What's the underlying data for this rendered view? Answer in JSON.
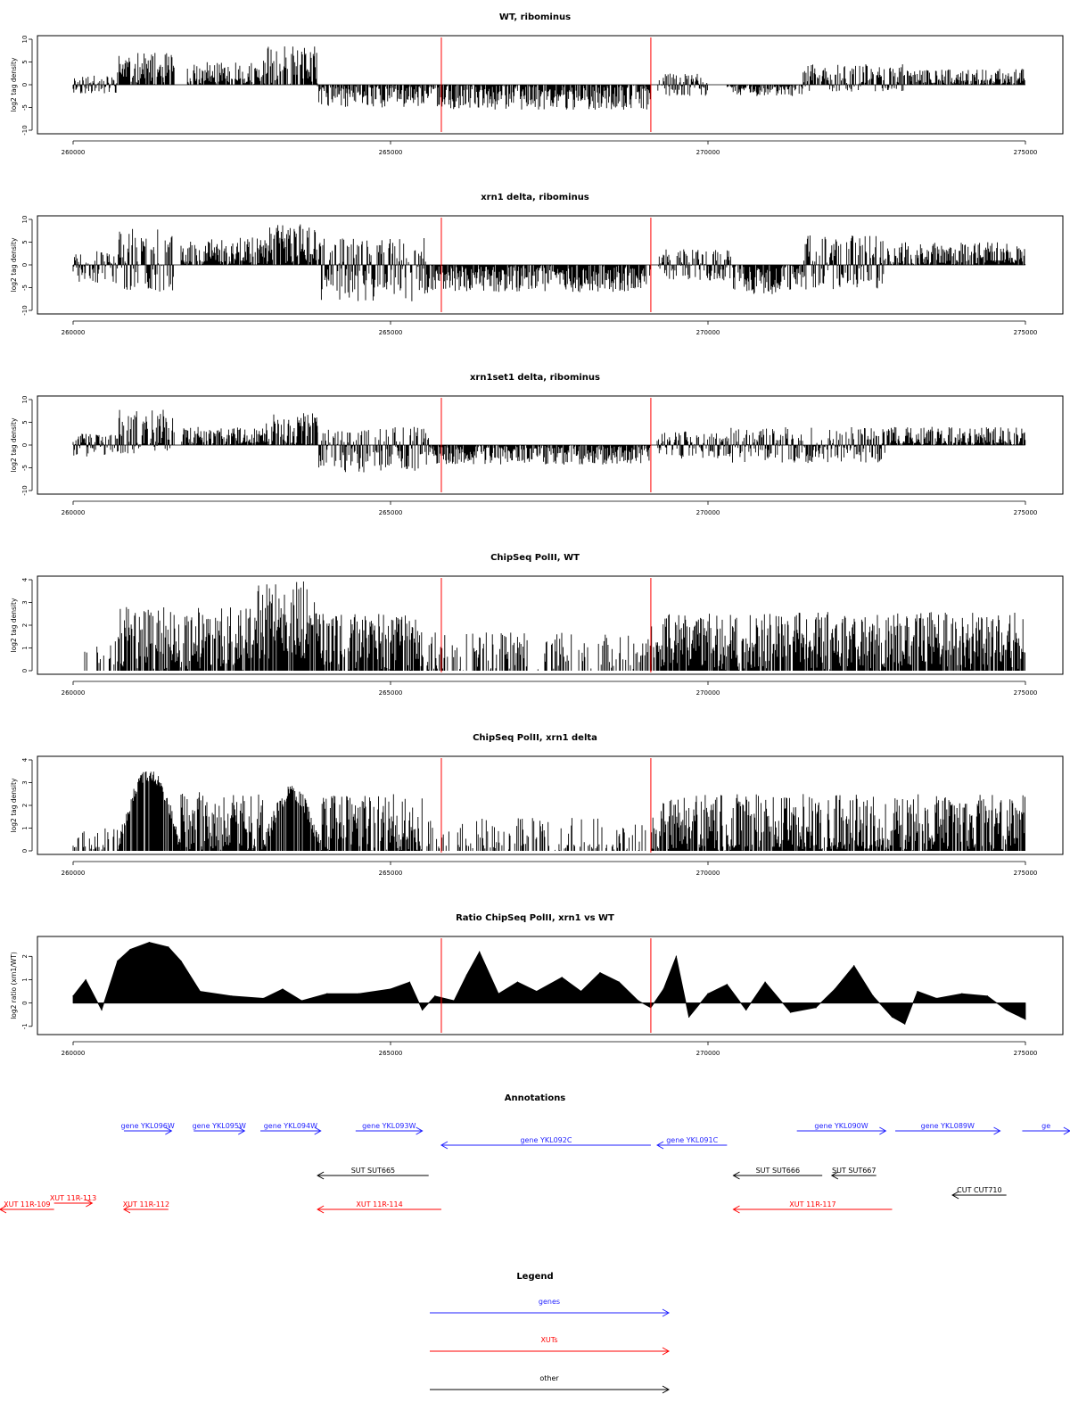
{
  "figure": {
    "colors": {
      "bar": "#000000",
      "region": "#ff0000",
      "genes": "#1f1fff",
      "xuts": "#ff0000",
      "other": "#000000"
    }
  },
  "chart_data": [
    {
      "type": "bar",
      "title": "WT, ribominus",
      "ylabel": "log2 tag density",
      "xlim": [
        260000,
        275000
      ],
      "xticks": [
        260000,
        265000,
        270000,
        275000
      ],
      "ylim": [
        -10,
        10
      ],
      "yticks": [
        -10,
        -5,
        0,
        5,
        10
      ],
      "seed": 11,
      "profile": [
        {
          "x": [
            260000,
            260700
          ],
          "mean": 0,
          "amp": 2,
          "sign": "mixed"
        },
        {
          "x": [
            260700,
            261600
          ],
          "mean": 3.5,
          "amp": 3.5,
          "sign": "pos"
        },
        {
          "x": [
            261800,
            263000
          ],
          "mean": 2,
          "amp": 3,
          "sign": "pos"
        },
        {
          "x": [
            263000,
            263850
          ],
          "mean": 4,
          "amp": 4.5,
          "sign": "pos"
        },
        {
          "x": [
            263850,
            265800
          ],
          "mean": -2,
          "amp": 3,
          "sign": "neg"
        },
        {
          "x": [
            265800,
            269100
          ],
          "mean": -2.5,
          "amp": 3,
          "sign": "neg"
        },
        {
          "x": [
            269200,
            270000
          ],
          "mean": 0,
          "amp": 2.5,
          "sign": "mixed"
        },
        {
          "x": [
            270300,
            271500
          ],
          "mean": -1,
          "amp": 1.5,
          "sign": "neg"
        },
        {
          "x": [
            271500,
            273200
          ],
          "mean": 1.5,
          "amp": 3,
          "sign": "mixed"
        },
        {
          "x": [
            273200,
            275000
          ],
          "mean": 1,
          "amp": 2.5,
          "sign": "pos"
        }
      ],
      "red_lines": [
        265800,
        269100
      ]
    },
    {
      "type": "bar",
      "title": "xrn1 delta, ribominus",
      "ylabel": "log2 tag density",
      "xlim": [
        260000,
        275000
      ],
      "xticks": [
        260000,
        265000,
        270000,
        275000
      ],
      "ylim": [
        -10,
        10
      ],
      "yticks": [
        -10,
        -5,
        0,
        5,
        10
      ],
      "seed": 23,
      "profile": [
        {
          "x": [
            260000,
            260700
          ],
          "mean": -0.5,
          "amp": 3.5,
          "sign": "mixed"
        },
        {
          "x": [
            260700,
            261580
          ],
          "mean": 1,
          "amp": 7,
          "sign": "mixed"
        },
        {
          "x": [
            261700,
            263000
          ],
          "mean": 2.5,
          "amp": 3.5,
          "sign": "pos"
        },
        {
          "x": [
            263000,
            263900
          ],
          "mean": 4,
          "amp": 5,
          "sign": "pos"
        },
        {
          "x": [
            263900,
            265600
          ],
          "mean": -1,
          "amp": 7,
          "sign": "mixed"
        },
        {
          "x": [
            265600,
            269100
          ],
          "mean": -3,
          "amp": 3,
          "sign": "neg"
        },
        {
          "x": [
            269200,
            270400
          ],
          "mean": 0,
          "amp": 3.5,
          "sign": "mixed"
        },
        {
          "x": [
            270400,
            271500
          ],
          "mean": -3,
          "amp": 3.5,
          "sign": "neg"
        },
        {
          "x": [
            271500,
            272800
          ],
          "mean": 0.5,
          "amp": 6,
          "sign": "mixed"
        },
        {
          "x": [
            272800,
            275000
          ],
          "mean": 2,
          "amp": 3,
          "sign": "pos"
        }
      ],
      "red_lines": [
        265800,
        269100
      ]
    },
    {
      "type": "bar",
      "title": "xrn1set1 delta, ribominus",
      "ylabel": "log2 tag density",
      "xlim": [
        260000,
        275000
      ],
      "xticks": [
        260000,
        265000,
        270000,
        275000
      ],
      "ylim": [
        -10,
        10
      ],
      "yticks": [
        -10,
        -5,
        0,
        5,
        10
      ],
      "seed": 37,
      "profile": [
        {
          "x": [
            260000,
            260700
          ],
          "mean": 0,
          "amp": 2.5,
          "sign": "mixed"
        },
        {
          "x": [
            260700,
            261600
          ],
          "mean": 3,
          "amp": 5,
          "sign": "mixed"
        },
        {
          "x": [
            261700,
            263000
          ],
          "mean": 1.5,
          "amp": 2.5,
          "sign": "pos"
        },
        {
          "x": [
            263000,
            263850
          ],
          "mean": 3,
          "amp": 4,
          "sign": "pos"
        },
        {
          "x": [
            263850,
            265600
          ],
          "mean": -1,
          "amp": 5,
          "sign": "mixed"
        },
        {
          "x": [
            265600,
            269100
          ],
          "mean": -1.8,
          "amp": 2.5,
          "sign": "neg"
        },
        {
          "x": [
            269200,
            270300
          ],
          "mean": 0,
          "amp": 3,
          "sign": "mixed"
        },
        {
          "x": [
            270300,
            272800
          ],
          "mean": 0,
          "amp": 4,
          "sign": "mixed"
        },
        {
          "x": [
            272800,
            275000
          ],
          "mean": 1.5,
          "amp": 2.5,
          "sign": "pos"
        }
      ],
      "red_lines": [
        265800,
        269100
      ]
    },
    {
      "type": "bar",
      "title": "ChipSeq PolII, WT",
      "ylabel": "log2 tag density",
      "xlim": [
        260000,
        275000
      ],
      "xticks": [
        260000,
        265000,
        270000,
        275000
      ],
      "ylim": [
        0,
        4
      ],
      "yticks": [
        0,
        1,
        2,
        3,
        4
      ],
      "seed": 51,
      "profile": [
        {
          "x": [
            260000,
            260700
          ],
          "mean": 0.7,
          "amp": 0.6,
          "sign": "pos",
          "density": 0.25
        },
        {
          "x": [
            260700,
            262900
          ],
          "mean": 1.4,
          "amp": 1.4,
          "sign": "pos"
        },
        {
          "x": [
            262900,
            263850
          ],
          "mean": 2.2,
          "amp": 1.8,
          "sign": "pos"
        },
        {
          "x": [
            263850,
            265500
          ],
          "mean": 1.2,
          "amp": 1.3,
          "sign": "pos"
        },
        {
          "x": [
            265500,
            269100
          ],
          "mean": 0.8,
          "amp": 0.9,
          "sign": "pos",
          "density": 0.35
        },
        {
          "x": [
            269100,
            275000
          ],
          "mean": 1.3,
          "amp": 1.3,
          "sign": "pos"
        }
      ],
      "red_lines": [
        265800,
        269100
      ]
    },
    {
      "type": "bar",
      "title": "ChipSeq PolII, xrn1 delta",
      "ylabel": "log2 tag density",
      "xlim": [
        260000,
        275000
      ],
      "xticks": [
        260000,
        265000,
        270000,
        275000
      ],
      "ylim": [
        0,
        4
      ],
      "yticks": [
        0,
        1,
        2,
        3,
        4
      ],
      "seed": 67,
      "profile": [
        {
          "x": [
            260000,
            260700
          ],
          "mean": 0.4,
          "amp": 0.6,
          "sign": "pos",
          "density": 0.3
        },
        {
          "x": [
            260700,
            261700
          ],
          "mean": 3.2,
          "amp": 1.0,
          "sign": "pos",
          "hump": true
        },
        {
          "x": [
            261700,
            263000
          ],
          "mean": 1.3,
          "amp": 1.3,
          "sign": "pos"
        },
        {
          "x": [
            263000,
            263900
          ],
          "mean": 2.4,
          "amp": 1.2,
          "sign": "pos",
          "hump": true
        },
        {
          "x": [
            263900,
            265500
          ],
          "mean": 1.2,
          "amp": 1.3,
          "sign": "pos"
        },
        {
          "x": [
            265500,
            269100
          ],
          "mean": 0.6,
          "amp": 0.9,
          "sign": "pos",
          "density": 0.3
        },
        {
          "x": [
            269100,
            275000
          ],
          "mean": 1.1,
          "amp": 1.4,
          "sign": "pos"
        }
      ],
      "red_lines": [
        265800,
        269100
      ]
    },
    {
      "type": "area",
      "title": "Ratio ChipSeq PolII, xrn1 vs WT",
      "ylabel": "log2 ratio (xrn1/WT)",
      "xlim": [
        260000,
        275000
      ],
      "xticks": [
        260000,
        265000,
        270000,
        275000
      ],
      "ylim": [
        -1.2,
        2.7
      ],
      "yticks": [
        -1,
        0,
        1,
        2
      ],
      "x": [
        260000,
        260200,
        260450,
        260700,
        260900,
        261200,
        261500,
        261700,
        262000,
        262500,
        263000,
        263300,
        263600,
        264000,
        264500,
        265000,
        265300,
        265500,
        265700,
        266000,
        266200,
        266400,
        266700,
        267000,
        267300,
        267700,
        268000,
        268300,
        268600,
        268900,
        269100,
        269300,
        269500,
        269700,
        270000,
        270300,
        270600,
        270900,
        271300,
        271700,
        272000,
        272300,
        272600,
        272900,
        273100,
        273300,
        273600,
        274000,
        274400,
        274700,
        275000
      ],
      "values": [
        0.3,
        1.0,
        -0.3,
        1.8,
        2.3,
        2.6,
        2.4,
        1.8,
        0.5,
        0.3,
        0.2,
        0.6,
        0.1,
        0.4,
        0.4,
        0.6,
        0.9,
        -0.3,
        0.3,
        0.1,
        1.2,
        2.2,
        0.4,
        0.9,
        0.5,
        1.1,
        0.5,
        1.3,
        0.9,
        0.1,
        -0.2,
        0.6,
        2.0,
        -0.6,
        0.4,
        0.8,
        -0.3,
        0.9,
        -0.4,
        -0.2,
        0.6,
        1.6,
        0.3,
        -0.6,
        -0.9,
        0.5,
        0.2,
        0.4,
        0.3,
        -0.3,
        -0.7
      ],
      "red_lines": [
        265800,
        269100
      ]
    }
  ],
  "annotations": {
    "title": "Annotations",
    "xlim": [
      260000,
      275000
    ],
    "features": [
      {
        "label": "gene YKL096W",
        "x1": 260800,
        "x2": 261550,
        "strand": "+",
        "row": 0,
        "type": "genes"
      },
      {
        "label": "gene YKL095W",
        "x1": 261900,
        "x2": 262700,
        "strand": "+",
        "row": 0,
        "type": "genes"
      },
      {
        "label": "gene YKL094W",
        "x1": 262950,
        "x2": 263900,
        "strand": "+",
        "row": 0,
        "type": "genes"
      },
      {
        "label": "gene YKL093W",
        "x1": 264450,
        "x2": 265500,
        "strand": "+",
        "row": 0,
        "type": "genes"
      },
      {
        "label": "gene YKL092C",
        "x1": 265800,
        "x2": 269100,
        "strand": "-",
        "row": 1,
        "type": "genes"
      },
      {
        "label": "gene YKL091C",
        "x1": 269200,
        "x2": 270300,
        "strand": "-",
        "row": 1,
        "type": "genes"
      },
      {
        "label": "gene YKL090W",
        "x1": 271400,
        "x2": 272800,
        "strand": "+",
        "row": 0,
        "type": "genes"
      },
      {
        "label": "gene YKL089W",
        "x1": 272950,
        "x2": 274600,
        "strand": "+",
        "row": 0,
        "type": "genes"
      },
      {
        "label": "ge",
        "x1": 274950,
        "x2": 275700,
        "strand": "+",
        "row": 0,
        "type": "genes"
      },
      {
        "label": "SUT SUT665",
        "x1": 263850,
        "x2": 265600,
        "strand": "-",
        "row": 2,
        "type": "other"
      },
      {
        "label": "SUT SUT666",
        "x1": 270400,
        "x2": 271800,
        "strand": "-",
        "row": 2,
        "type": "other"
      },
      {
        "label": "SUT SUT667",
        "x1": 271950,
        "x2": 272650,
        "strand": "-",
        "row": 2,
        "type": "other"
      },
      {
        "label": "CUT CUT710",
        "x1": 273850,
        "x2": 274700,
        "strand": "-",
        "row": 3,
        "type": "other"
      },
      {
        "label": "XUT 11R-113",
        "x1": 259700,
        "x2": 260300,
        "strand": "+",
        "row": 3.5,
        "type": "xuts"
      },
      {
        "label": "XUT 11R-109",
        "x1": 258800,
        "x2": 259700,
        "strand": "-",
        "row": 4,
        "type": "xuts"
      },
      {
        "label": "XUT 11R-112",
        "x1": 260800,
        "x2": 261500,
        "strand": "-",
        "row": 4,
        "type": "xuts"
      },
      {
        "label": "XUT 11R-114",
        "x1": 263850,
        "x2": 265800,
        "strand": "-",
        "row": 4,
        "type": "xuts"
      },
      {
        "label": "XUT 11R-117",
        "x1": 270400,
        "x2": 272900,
        "strand": "-",
        "row": 4,
        "type": "xuts"
      }
    ]
  },
  "legend": {
    "title": "Legend",
    "items": [
      {
        "label": "genes",
        "type": "genes"
      },
      {
        "label": "XUTs",
        "type": "xuts"
      },
      {
        "label": "other",
        "type": "other"
      }
    ]
  }
}
